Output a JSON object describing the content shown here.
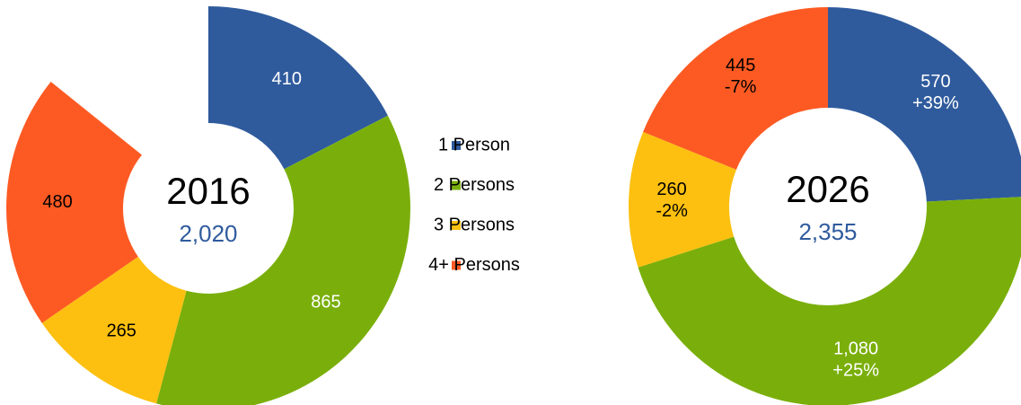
{
  "legend": {
    "labels": [
      "1 Person",
      "2 Persons",
      "3 Persons",
      "4+ Persons"
    ],
    "colors": [
      "#2f5b9d",
      "#7aaf0b",
      "#fdc010",
      "#fd5a23"
    ]
  },
  "chart_data": [
    {
      "type": "pie",
      "title": "2016",
      "total": 2020,
      "total_label": "2,020",
      "values": [
        410,
        865,
        265,
        480
      ]
    },
    {
      "type": "pie",
      "title": "2026",
      "total": 2355,
      "total_label": "2,355",
      "values": [
        570,
        1080,
        260,
        445
      ],
      "value_labels": [
        "570",
        "1,080",
        "260",
        "445"
      ],
      "change_labels": [
        "+39%",
        "+25%",
        "-2%",
        "-7%"
      ]
    }
  ]
}
